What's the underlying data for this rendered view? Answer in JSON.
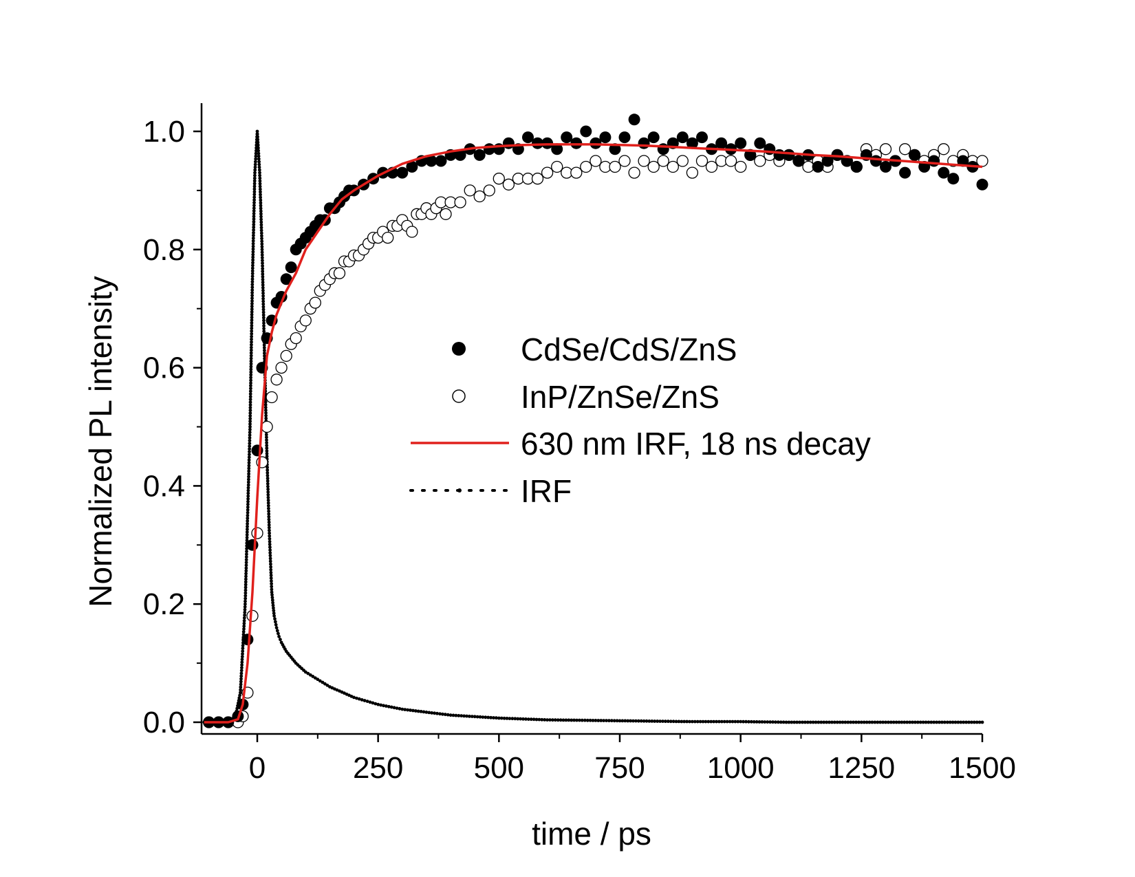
{
  "chart_data": {
    "type": "scatter",
    "xlabel": "time / ps",
    "ylabel": "Normalized PL intensity",
    "xlim": [
      -110,
      1500
    ],
    "ylim": [
      -0.02,
      1.05
    ],
    "xticks": [
      0,
      250,
      500,
      750,
      1000,
      1250,
      1500
    ],
    "xtick_labels": [
      "0",
      "250",
      "500",
      "750",
      "1000",
      "1250",
      "1500"
    ],
    "yticks": [
      0.0,
      0.2,
      0.4,
      0.6,
      0.8,
      1.0
    ],
    "ytick_labels": [
      "0.0",
      "0.2",
      "0.4",
      "0.6",
      "0.8",
      "1.0"
    ],
    "grid": false,
    "legend_position": "center-right",
    "series": [
      {
        "name": "CdSe/CdS/ZnS",
        "style": "filled-circle",
        "color": "#000000",
        "x": [
          -100,
          -80,
          -60,
          -40,
          -30,
          -20,
          -10,
          0,
          10,
          20,
          30,
          40,
          50,
          60,
          70,
          80,
          90,
          100,
          110,
          120,
          130,
          140,
          150,
          160,
          170,
          180,
          190,
          200,
          220,
          240,
          260,
          280,
          300,
          320,
          340,
          360,
          380,
          400,
          420,
          440,
          460,
          480,
          500,
          520,
          540,
          560,
          580,
          600,
          620,
          640,
          660,
          680,
          700,
          720,
          740,
          760,
          780,
          800,
          820,
          840,
          860,
          880,
          900,
          920,
          940,
          960,
          980,
          1000,
          1020,
          1040,
          1060,
          1080,
          1100,
          1120,
          1140,
          1160,
          1180,
          1200,
          1220,
          1240,
          1260,
          1280,
          1300,
          1320,
          1340,
          1360,
          1380,
          1400,
          1420,
          1440,
          1460,
          1480,
          1500
        ],
        "y": [
          0.0,
          0.0,
          0.0,
          0.01,
          0.03,
          0.14,
          0.3,
          0.46,
          0.6,
          0.65,
          0.68,
          0.71,
          0.72,
          0.75,
          0.77,
          0.8,
          0.81,
          0.82,
          0.83,
          0.84,
          0.85,
          0.85,
          0.87,
          0.87,
          0.88,
          0.89,
          0.9,
          0.9,
          0.91,
          0.92,
          0.93,
          0.93,
          0.93,
          0.94,
          0.95,
          0.95,
          0.95,
          0.96,
          0.96,
          0.97,
          0.96,
          0.97,
          0.97,
          0.98,
          0.97,
          0.99,
          0.98,
          0.98,
          0.97,
          0.99,
          0.98,
          1.0,
          0.98,
          0.99,
          0.97,
          0.99,
          1.02,
          0.98,
          0.99,
          0.97,
          0.98,
          0.99,
          0.98,
          0.99,
          0.97,
          0.98,
          0.97,
          0.98,
          0.96,
          0.98,
          0.97,
          0.96,
          0.96,
          0.95,
          0.96,
          0.94,
          0.95,
          0.96,
          0.95,
          0.94,
          0.96,
          0.95,
          0.94,
          0.95,
          0.93,
          0.96,
          0.94,
          0.95,
          0.93,
          0.92,
          0.95,
          0.94,
          0.91
        ]
      },
      {
        "name": "InP/ZnSe/ZnS",
        "style": "open-circle",
        "color": "#000000",
        "x": [
          -100,
          -80,
          -60,
          -40,
          -30,
          -20,
          -10,
          0,
          10,
          20,
          30,
          40,
          50,
          60,
          70,
          80,
          90,
          100,
          110,
          120,
          130,
          140,
          150,
          160,
          170,
          180,
          190,
          200,
          210,
          220,
          230,
          240,
          250,
          260,
          270,
          280,
          290,
          300,
          310,
          320,
          330,
          340,
          350,
          360,
          370,
          380,
          390,
          400,
          420,
          440,
          460,
          480,
          500,
          520,
          540,
          560,
          580,
          600,
          620,
          640,
          660,
          680,
          700,
          720,
          740,
          760,
          780,
          800,
          820,
          840,
          860,
          880,
          900,
          920,
          940,
          960,
          980,
          1000,
          1020,
          1040,
          1060,
          1080,
          1100,
          1120,
          1140,
          1160,
          1180,
          1200,
          1220,
          1240,
          1260,
          1280,
          1300,
          1320,
          1340,
          1360,
          1380,
          1400,
          1420,
          1440,
          1460,
          1480,
          1500
        ],
        "y": [
          0.0,
          0.0,
          0.0,
          0.0,
          0.01,
          0.05,
          0.18,
          0.32,
          0.44,
          0.5,
          0.55,
          0.58,
          0.6,
          0.62,
          0.64,
          0.65,
          0.67,
          0.68,
          0.7,
          0.71,
          0.73,
          0.74,
          0.75,
          0.76,
          0.76,
          0.78,
          0.78,
          0.79,
          0.79,
          0.8,
          0.81,
          0.82,
          0.82,
          0.83,
          0.82,
          0.84,
          0.84,
          0.85,
          0.84,
          0.83,
          0.86,
          0.86,
          0.87,
          0.86,
          0.87,
          0.88,
          0.86,
          0.88,
          0.88,
          0.9,
          0.89,
          0.9,
          0.92,
          0.91,
          0.92,
          0.92,
          0.92,
          0.93,
          0.94,
          0.93,
          0.93,
          0.94,
          0.95,
          0.94,
          0.94,
          0.95,
          0.93,
          0.95,
          0.94,
          0.95,
          0.94,
          0.95,
          0.93,
          0.95,
          0.94,
          0.95,
          0.95,
          0.94,
          0.96,
          0.95,
          0.96,
          0.95,
          0.96,
          0.95,
          0.94,
          0.95,
          0.94,
          0.96,
          0.95,
          0.94,
          0.97,
          0.96,
          0.97,
          0.95,
          0.97,
          0.96,
          0.95,
          0.96,
          0.97,
          0.95,
          0.96,
          0.95,
          0.95
        ]
      },
      {
        "name": "630 nm IRF, 18 ns decay",
        "style": "line",
        "color": "#e0201c",
        "x": [
          -110,
          -60,
          -40,
          -30,
          -20,
          -10,
          0,
          10,
          20,
          30,
          40,
          50,
          60,
          80,
          100,
          125,
          150,
          175,
          200,
          250,
          300,
          350,
          400,
          450,
          500,
          550,
          600,
          650,
          700,
          750,
          800,
          850,
          900,
          950,
          1000,
          1050,
          1100,
          1150,
          1200,
          1250,
          1300,
          1350,
          1400,
          1450,
          1500
        ],
        "y": [
          0.0,
          0.0,
          0.005,
          0.03,
          0.1,
          0.22,
          0.38,
          0.52,
          0.62,
          0.66,
          0.69,
          0.71,
          0.73,
          0.76,
          0.8,
          0.83,
          0.86,
          0.885,
          0.9,
          0.925,
          0.945,
          0.958,
          0.966,
          0.972,
          0.975,
          0.977,
          0.978,
          0.978,
          0.978,
          0.977,
          0.976,
          0.974,
          0.972,
          0.97,
          0.968,
          0.966,
          0.963,
          0.96,
          0.958,
          0.955,
          0.952,
          0.949,
          0.946,
          0.943,
          0.94
        ]
      },
      {
        "name": "IRF",
        "style": "dotted",
        "color": "#000000",
        "x": [
          -110,
          -60,
          -45,
          -35,
          -25,
          -15,
          -10,
          -5,
          0,
          5,
          10,
          15,
          20,
          25,
          30,
          35,
          40,
          45,
          50,
          60,
          80,
          100,
          150,
          200,
          250,
          300,
          400,
          500,
          600,
          700,
          800,
          900,
          1000,
          1100,
          1200,
          1300,
          1400,
          1500
        ],
        "y": [
          0.0,
          0.0,
          0.01,
          0.05,
          0.2,
          0.5,
          0.75,
          0.93,
          1.0,
          0.93,
          0.8,
          0.62,
          0.45,
          0.32,
          0.22,
          0.18,
          0.16,
          0.145,
          0.135,
          0.12,
          0.1,
          0.085,
          0.06,
          0.042,
          0.03,
          0.022,
          0.012,
          0.007,
          0.004,
          0.003,
          0.002,
          0.001,
          0.001,
          0.0,
          0.0,
          0.0,
          0.0,
          0.0
        ]
      }
    ]
  }
}
